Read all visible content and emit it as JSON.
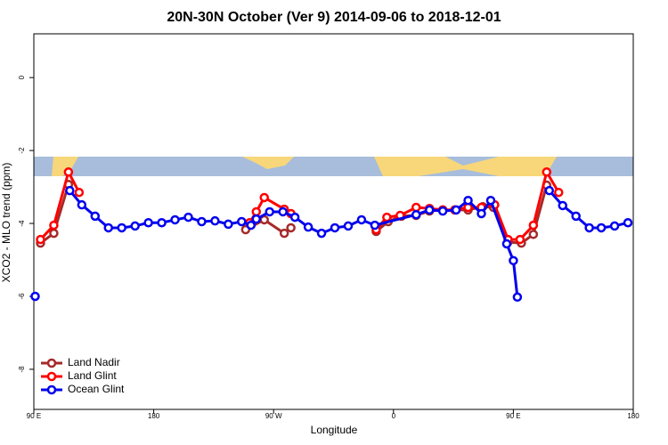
{
  "chart_data": {
    "type": "line",
    "title": "20N-30N October (Ver 9)   2014-09-06 to 2018-12-01",
    "x_label": "Longitude",
    "y_label": "XCO2 - MLO trend (ppm)",
    "xlim": [
      90,
      540
    ],
    "ylim": [
      -9.1,
      1.2
    ],
    "xticks": [
      {
        "value": 90,
        "label": "90 E"
      },
      180,
      {
        "value": 270,
        "label": "90 W"
      },
      {
        "value": 360,
        "label": "0"
      },
      {
        "value": 450,
        "label": "90 E"
      },
      {
        "value": 540,
        "label": "180"
      }
    ],
    "yticks": [
      0,
      -2,
      -4,
      -6,
      -8
    ],
    "legend": "bottom-left",
    "series": [
      {
        "name": "Land Nadir",
        "color": "#a52a2a",
        "x": [
          95,
          105,
          116,
          null,
          249,
          263,
          278,
          283,
          null,
          347,
          356,
          366,
          377,
          387,
          397,
          416,
          427,
          435,
          446,
          456,
          465,
          475
        ],
        "values": [
          -4.54,
          -4.27,
          -2.93,
          null,
          -4.17,
          -3.9,
          -4.27,
          -4.12,
          null,
          -4.22,
          -3.95,
          -3.8,
          -3.78,
          -3.66,
          -3.63,
          -3.63,
          -3.54,
          -3.56,
          -4.51,
          -4.54,
          -4.3,
          -2.95
        ]
      },
      {
        "name": "Land Glint",
        "color": "#ff0000",
        "x": [
          95,
          105,
          116,
          124,
          null,
          252,
          257,
          263,
          278,
          283,
          null,
          347,
          355,
          365,
          377,
          387,
          397,
          406,
          416,
          426,
          436,
          446,
          455,
          465,
          475,
          484
        ],
        "values": [
          -4.44,
          -4.05,
          -2.59,
          -3.15,
          null,
          -3.98,
          -3.68,
          -3.29,
          -3.61,
          -3.73,
          null,
          -4.17,
          -3.83,
          -3.78,
          -3.56,
          -3.59,
          -3.63,
          -3.63,
          -3.56,
          -3.56,
          -3.49,
          -4.44,
          -4.44,
          -4.05,
          -2.59,
          -3.15
        ]
      },
      {
        "name": "Ocean Glint",
        "color": "#0000ee",
        "x": [
          91,
          null,
          117,
          126,
          136,
          146,
          156,
          166,
          176,
          186,
          196,
          206,
          216,
          226,
          236,
          246,
          253,
          257,
          267,
          277,
          286,
          296,
          306,
          316,
          326,
          336,
          346,
          377,
          387,
          397,
          407,
          416,
          426,
          433,
          445,
          450,
          453,
          null,
          477,
          487,
          497,
          507,
          516,
          526,
          536
        ],
        "values": [
          -6.0,
          null,
          -3.1,
          -3.49,
          -3.8,
          -4.12,
          -4.12,
          -4.07,
          -3.98,
          -3.98,
          -3.9,
          -3.83,
          -3.95,
          -3.93,
          -4.02,
          -3.95,
          -4.05,
          -3.88,
          -3.68,
          -3.68,
          -3.83,
          -4.1,
          -4.27,
          -4.12,
          -4.07,
          -3.9,
          -4.05,
          -3.76,
          -3.63,
          -3.66,
          -3.63,
          -3.37,
          -3.73,
          -3.37,
          -4.56,
          -5.02,
          -6.02,
          null,
          -3.1,
          -3.51,
          -3.8,
          -4.12,
          -4.12,
          -4.07,
          -3.98
        ]
      }
    ]
  }
}
